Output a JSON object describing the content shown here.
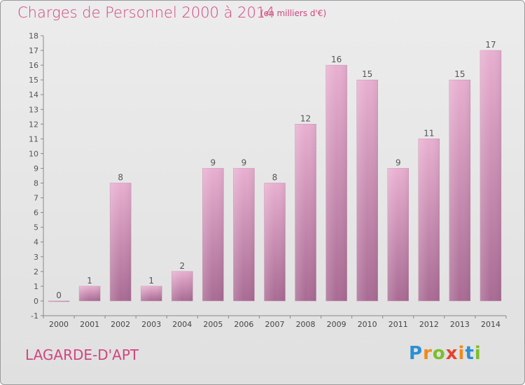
{
  "title": "Charges de Personnel 2000 à 2014",
  "unit_note": "(en milliers d'€)",
  "commune": "LAGARDE-D'APT",
  "logo": {
    "letters": [
      "P",
      "r",
      "o",
      "x",
      "i",
      "t",
      "i"
    ],
    "colors": [
      "#2a8fd6",
      "#f08a1c",
      "#7abf2a",
      "#e8412c",
      "#f08a1c",
      "#2a8fd6",
      "#7abf2a"
    ]
  },
  "colors": {
    "bar": "#d17fa9",
    "bar_light": "#e8afd0",
    "bar_dark": "#a96b94",
    "title": "#d2457e",
    "axis": "#888888"
  },
  "chart_data": {
    "type": "bar",
    "categories": [
      "2000",
      "2001",
      "2002",
      "2003",
      "2004",
      "2005",
      "2006",
      "2007",
      "2008",
      "2009",
      "2010",
      "2011",
      "2012",
      "2013",
      "2014"
    ],
    "values": [
      0,
      1,
      8,
      1,
      2,
      9,
      9,
      8,
      12,
      16,
      15,
      9,
      11,
      15,
      17
    ],
    "data_labels": [
      "0",
      "1",
      "8",
      "1",
      "2",
      "9",
      "9",
      "8",
      "12",
      "16",
      "15",
      "9",
      "11",
      "15",
      "17"
    ],
    "y_ticks": [
      "-1",
      "0",
      "1",
      "2",
      "3",
      "4",
      "5",
      "6",
      "7",
      "8",
      "9",
      "10",
      "11",
      "12",
      "13",
      "14",
      "15",
      "16",
      "17",
      "18"
    ],
    "ylim": [
      -1,
      18
    ],
    "grid": false,
    "title": "Charges de Personnel 2000 à 2014",
    "xlabel": "",
    "ylabel": ""
  }
}
